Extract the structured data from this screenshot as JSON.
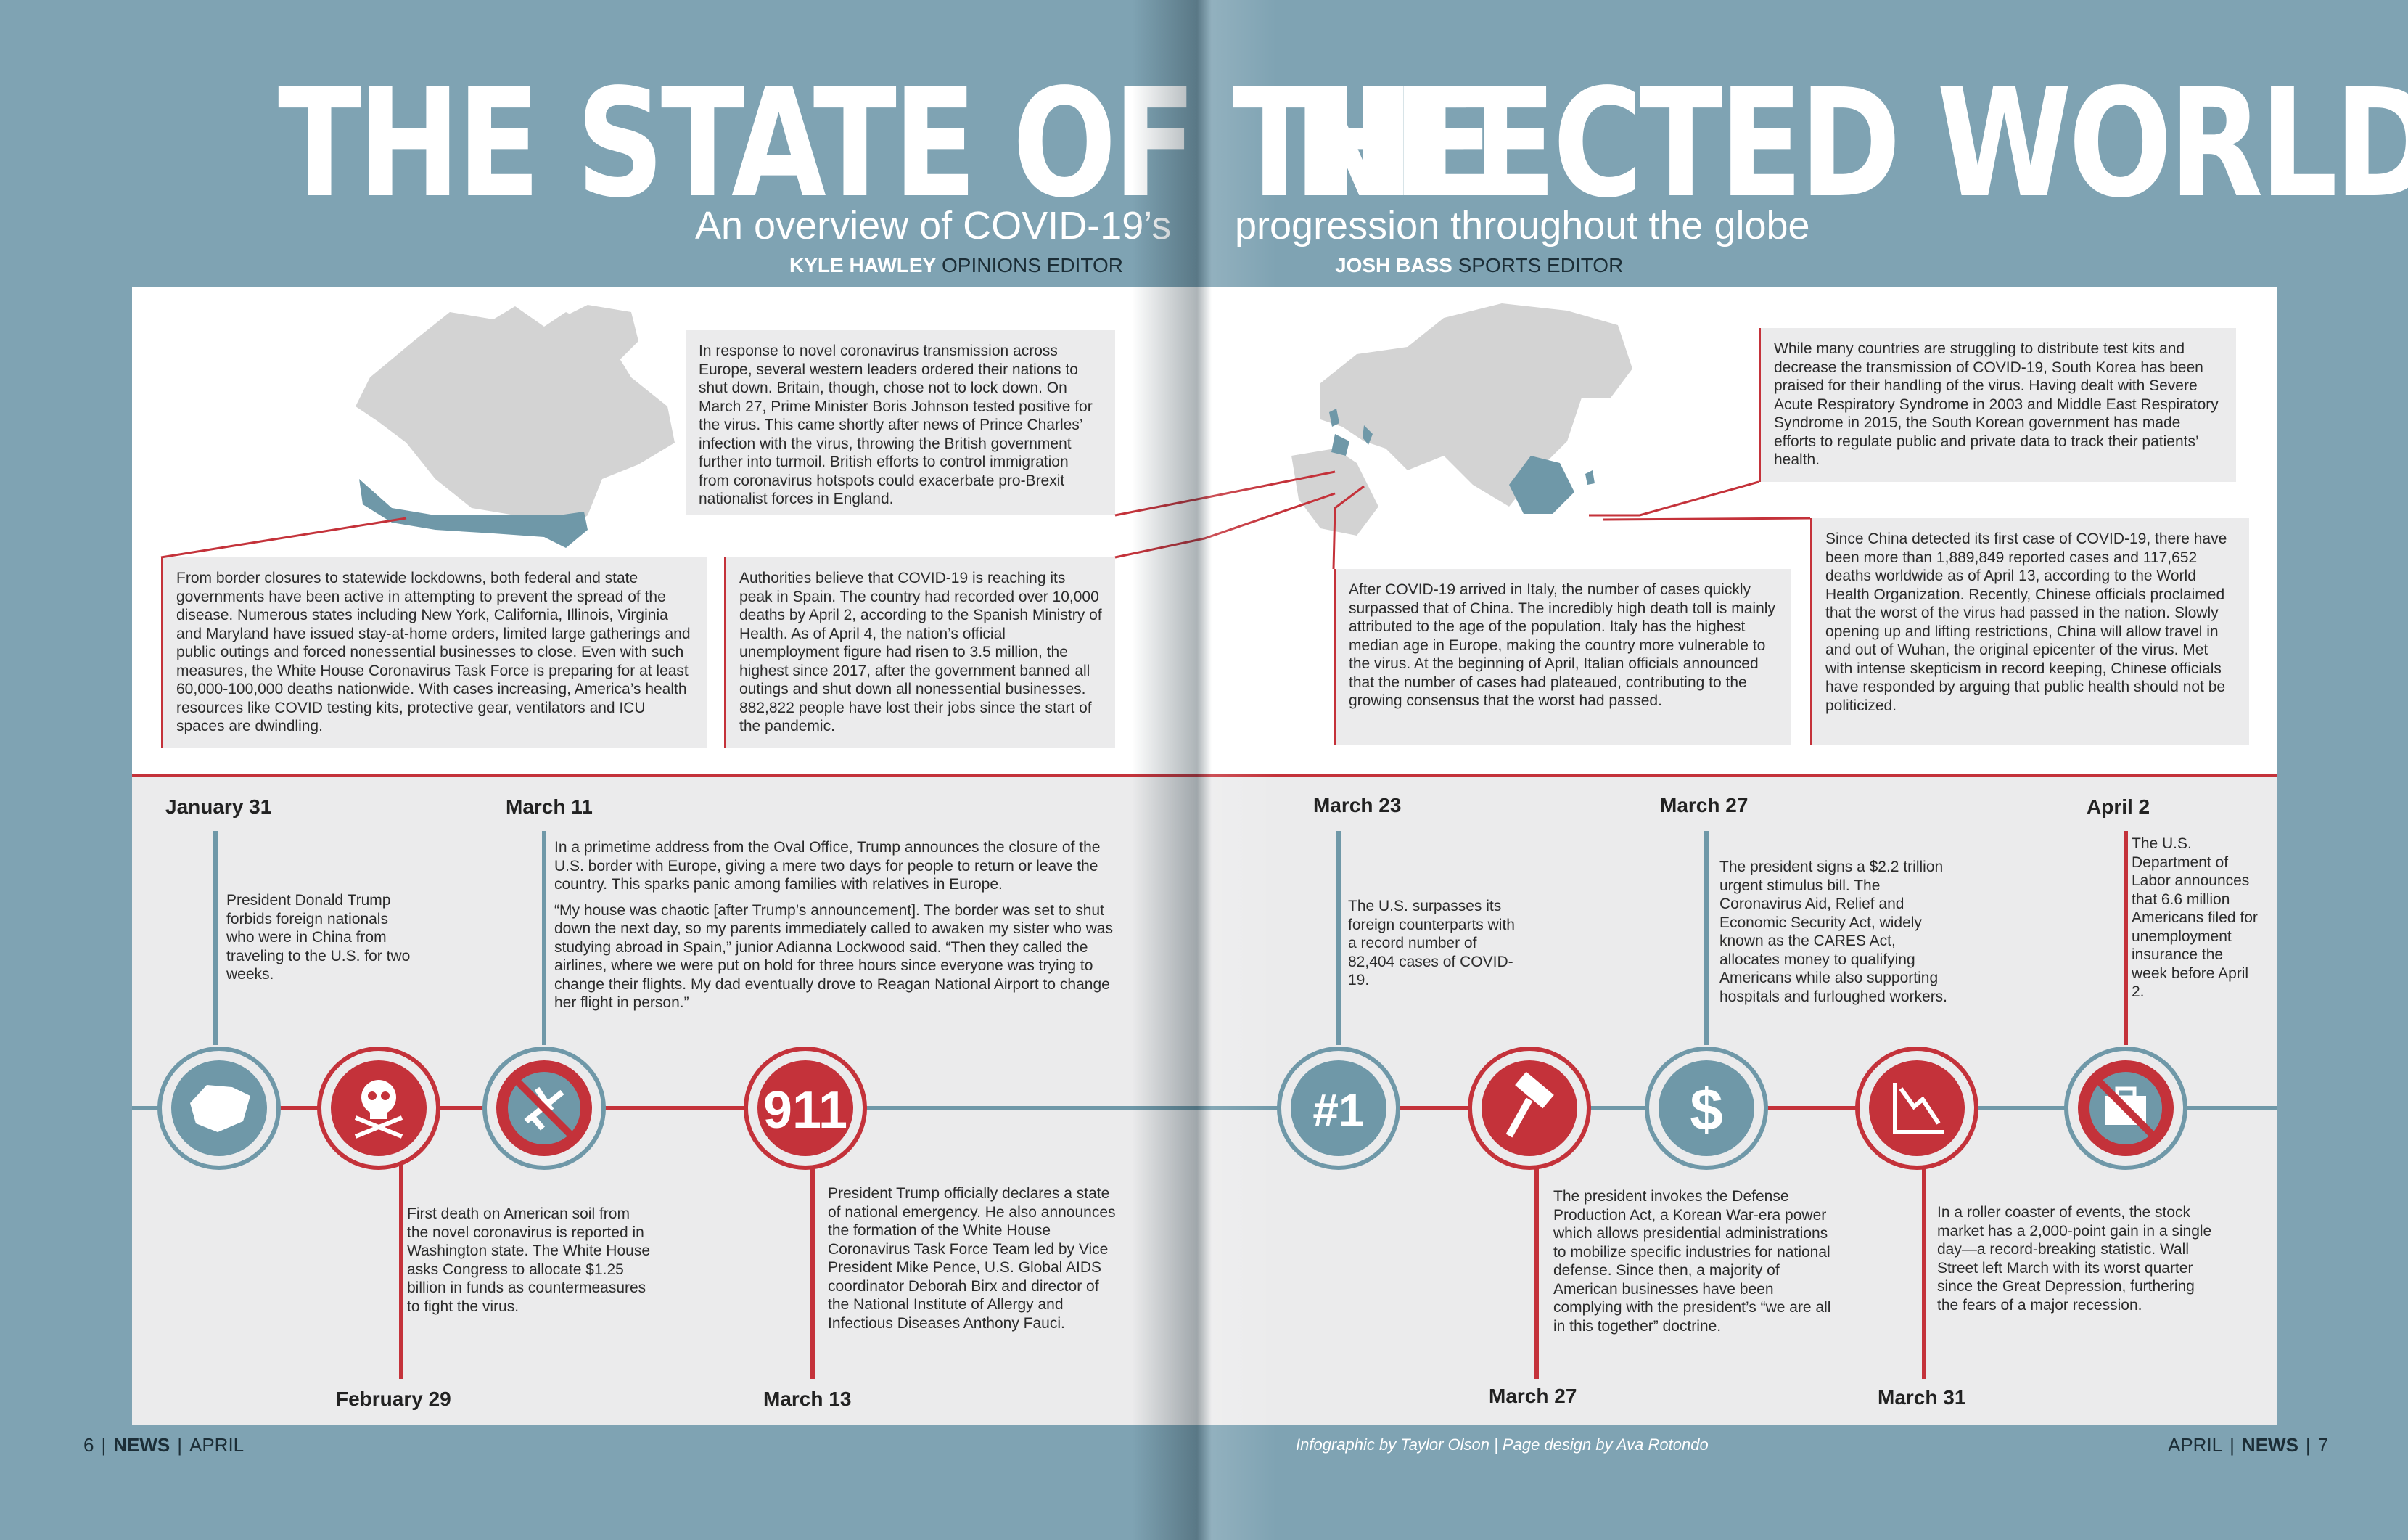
{
  "header": {
    "title_left": "THE STATE OF THE",
    "title_right": "INFECTED WORLD",
    "subtitle_left": "An overview of COVID-19’s",
    "subtitle_right": "progression throughout the globe",
    "byline_left_name": "KYLE HAWLEY",
    "byline_left_role": " OPINIONS EDITOR",
    "byline_right_name": "JOSH BASS",
    "byline_right_role": " SPORTS EDITOR"
  },
  "stories": {
    "britain": "In response to novel coronavirus transmission across Europe, several western leaders ordered their nations to shut down. Britain, though, chose not to lock down. On March 27, Prime Minister Boris Johnson tested positive for the virus. This came shortly after news of Prince Charles’ infection with the virus, throwing the British government further into turmoil. British efforts to control immigration from coronavirus hotspots could exacerbate pro-Brexit nationalist forces in England.",
    "usa": "From border closures to statewide lockdowns, both federal and state governments have been active in attempting to prevent the spread of the disease. Numerous states including New York, California, Illinois, Virginia and Maryland have issued stay-at-home orders, limited large gatherings and public outings and forced nonessential businesses to close. Even with such measures, the White House Coronavirus Task Force is preparing for at least 60,000-100,000 deaths nationwide. With cases increasing, America’s health resources like COVID testing kits, protective gear, ventilators and ICU spaces are dwindling.",
    "spain": "Authorities believe that COVID-19 is reaching its peak in Spain. The country had recorded over 10,000 deaths by April 2, according to the Spanish Ministry of Health. As of April 4, the nation’s official unemployment figure had risen to 3.5 million, the highest since 2017, after the government banned all outings and shut down all nonessential businesses. 882,822 people have lost their jobs since the start of the pandemic.",
    "korea": "While many countries are struggling to distribute test kits and decrease the transmission of COVID-19, South Korea has been praised for their handling of the virus. Having dealt with Severe Acute Respiratory Syndrome in 2003 and Middle East Respiratory Syndrome in 2015, the South Korean government has made efforts to regulate public and private data to track their patients’ health.",
    "italy": "After COVID-19 arrived in Italy, the number of cases quickly surpassed that of China. The incredibly high death toll is mainly attributed to the age of the population. Italy has the highest median age in Europe, making the country more vulnerable to the virus. At the beginning of April, Italian officials announced that the number of cases had plateaued, contributing to the growing consensus that the worst had passed.",
    "china": "Since China detected its first case of COVID-19, there have been more than 1,889,849 reported cases and 117,652 deaths worldwide as of April 13, according to the World Health Organization. Recently, Chinese officials proclaimed that the worst of the virus had passed in the nation. Slowly opening up and lifting restrictions, China will allow travel in and out of Wuhan, the original epicenter of the virus. Met with intense skepticism in record keeping, Chinese officials have responded by arguing that public health should not be politicized."
  },
  "timeline": {
    "jan31": {
      "date": "January 31",
      "text": "President Donald Trump forbids foreign nationals who were in China from traveling to the U.S. for two weeks."
    },
    "feb29": {
      "date": "February 29",
      "text": "First death on American soil from the novel coronavirus is reported in Washington state. The White House asks Congress to allocate $1.25 billion in funds as countermeasures to fight the virus."
    },
    "mar11": {
      "date": "March 11",
      "text1": "In a primetime address from the Oval Office, Trump announces the closure of the U.S. border with Europe, giving a mere two days for people to return or leave the country. This sparks panic among families with relatives in Europe.",
      "text2": "“My house was chaotic [after Trump’s announcement]. The border was set to shut down the next day, so my parents immediately called to awaken my sister who was studying abroad in Spain,” junior Adianna Lockwood said. “Then they called the airlines, where we were put on hold for three hours since everyone was trying to change their flights. My dad eventually drove to Reagan National Airport to change her flight in person.”"
    },
    "mar13": {
      "date": "March 13",
      "text": "President Trump officially declares a state of national emergency. He also announces the formation of the White House Coronavirus Task Force Team led by Vice President Mike Pence, U.S. Global AIDS coordinator Deborah Birx and director of the National Institute of Allergy and Infectious Diseases Anthony Fauci."
    },
    "mar23": {
      "date": "March 23",
      "text": "The U.S. surpasses its foreign counterparts with a record number of 82,404 cases of COVID-19."
    },
    "mar27a": {
      "date": "March 27",
      "text": "The president signs a $2.2 trillion urgent stimulus bill. The Coronavirus Aid, Relief and Economic Security Act, widely known as the CARES Act, allocates money to qualifying Americans while also supporting hospitals and furloughed workers."
    },
    "mar27b": {
      "date": "March 27",
      "text": "The president invokes the Defense Production Act, a Korean War-era power which allows presidential administrations to mobilize specific industries for national defense. Since then, a majority of American businesses have been complying with the president’s “we are all in this together” doctrine."
    },
    "mar31": {
      "date": "March 31",
      "text": "In a roller coaster of events, the stock market has a 2,000-point gain in a single day—a record-breaking statistic. Wall Street left March with its worst quarter since the Great Depression, furthering the fears of a major recession."
    },
    "apr2": {
      "date": "April 2",
      "text": "The U.S. Department of Labor announces that 6.6 million Americans filed for unemployment insurance the week before April 2."
    },
    "icons": [
      "china-map-icon",
      "skull-crossbones-icon",
      "no-flight-icon",
      "nine-eleven-icon",
      "number-one-icon",
      "hammer-icon",
      "dollar-icon",
      "stock-decline-icon",
      "no-briefcase-icon"
    ],
    "icon_labels": {
      "nine_eleven": "911",
      "number_one": "#1",
      "dollar": "$"
    }
  },
  "footer": {
    "left_page": "6",
    "left_section": "NEWS",
    "left_month": "APRIL",
    "credit": "Infographic by Taylor Olson  |  Page design by Ava Rotondo",
    "right_month": "APRIL",
    "right_section": "NEWS",
    "right_page": "7",
    "separator": "|"
  },
  "colors": {
    "background": "#7fa3b3",
    "red": "#c4323a",
    "blue": "#6f98a8",
    "panel": "#ebebec",
    "map_gray": "#d3d3d3"
  }
}
